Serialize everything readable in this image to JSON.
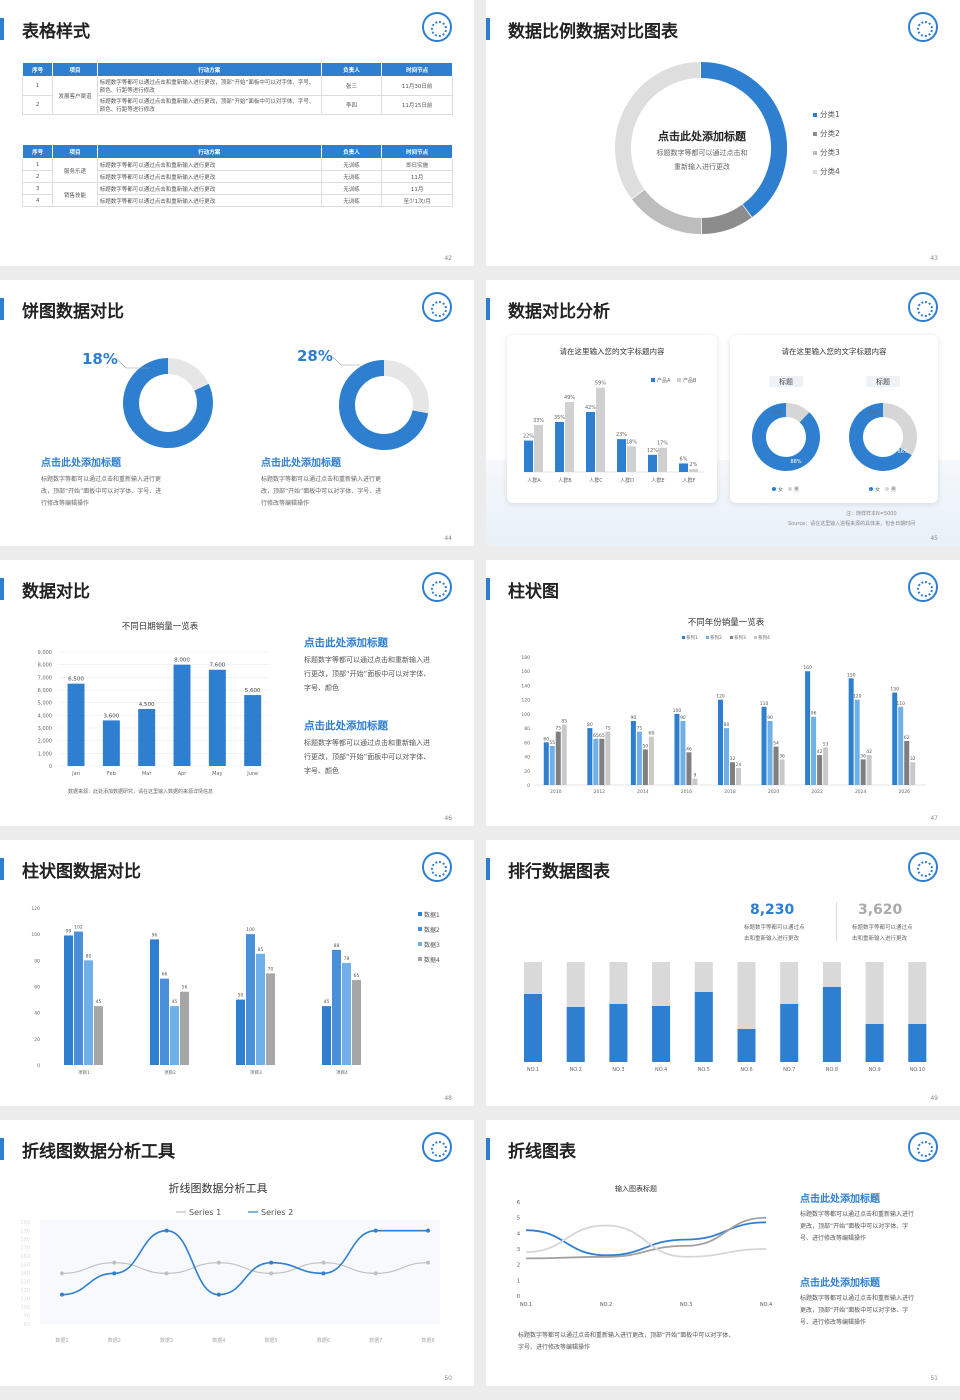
{
  "colors": {
    "blue": "#2f7fd1",
    "light_blue": "#6fb0e8",
    "gray": "#9e9e9e",
    "light_gray": "#d9d9d9"
  },
  "s42": {
    "title": "表格样式",
    "page": "42",
    "t1_headers": [
      "序号",
      "项目",
      "行动方案",
      "负责人",
      "时间节点"
    ],
    "t1_rows": [
      [
        "1",
        "发展客户渠道",
        "标题数字等都可以通过点击和重新输入进行更改，顶部“开始”面板中可以对字体、字号、颜色、行距等进行修改",
        "张三",
        "11月30日前"
      ],
      [
        "2",
        "",
        "标题数字等都可以通过点击和重新输入进行更改，顶部“开始”面板中可以对字体、字号、颜色、行距等进行修改",
        "李四",
        "11月15日前"
      ]
    ],
    "t2_headers": [
      "序号",
      "项目",
      "行动方案",
      "负责人",
      "时间节点"
    ],
    "t2_rows": [
      [
        "1",
        "服务乐递",
        "标题数字等都可以通过点击和重新输入进行更改",
        "无训练",
        "即日实施"
      ],
      [
        "2",
        "",
        "标题数字等都可以通过点击和重新输入进行更改",
        "无训练",
        "11月"
      ],
      [
        "3",
        "销售技能",
        "标题数字等都可以通过点击和重新输入进行更改",
        "无训练",
        "11月"
      ],
      [
        "4",
        "",
        "标题数字等都可以通过点击和重新输入进行更改",
        "无训练",
        "至少1次/月"
      ]
    ]
  },
  "s43": {
    "title": "数据比例数据对比图表",
    "page": "43",
    "center_title": "点击此处添加标题",
    "center_text1": "标题数字等都可以通过点击和",
    "center_text2": "重新输入进行更改",
    "legend": [
      "分类1",
      "分类2",
      "分类3",
      "分类4"
    ]
  },
  "s44": {
    "title": "饼图数据对比",
    "page": "44",
    "p1": "18%",
    "p2": "28%",
    "h1": "点击此处添加标题",
    "h2": "点击此处添加标题",
    "d1": [
      "标题数字等都可以通过点击和重新输入进行更",
      "改，顶部“开始”面板中可以对字体、字号、进",
      "行修改等编辑操作"
    ],
    "d2": [
      "标题数字等都可以通过点击和重新输入进行更",
      "改，顶部“开始”面板中可以对字体、字号、进",
      "行修改等编辑操作"
    ]
  },
  "s45": {
    "title": "数据对比分析",
    "page": "45",
    "card1_title": "请在这里输入您的文字标题内容",
    "card2_title": "请在这里输入您的文字标题内容",
    "legend": [
      "产品A",
      "产品B"
    ],
    "tag": "标题",
    "pie_legend": [
      "女",
      "男"
    ],
    "note": "注：随样样本N=5000",
    "source": "Source：请在这里输入进程来源的具体来，包含日期时间"
  },
  "s46": {
    "title": "数据对比",
    "page": "46",
    "chart_title": "不同日期销量一览表",
    "h1": "点击此处添加标题",
    "h2": "点击此处添加标题",
    "d1": [
      "标题数字等都可以通过点击和重新输入进",
      "行更改，顶部“开始”面板中可以对字体、",
      "字号、颜色"
    ],
    "d2": [
      "标题数字等都可以通过点击和重新输入进",
      "行更改，顶部“开始”面板中可以对字体、",
      "字号、颜色"
    ],
    "source": "数据来源：此处添加数据研究，请在这里输入数据的来源详情信息"
  },
  "s47": {
    "title": "柱状图",
    "page": "47",
    "chart_title": "不同年份销量一览表",
    "legend": [
      "系列1",
      "系列2",
      "系列3",
      "系列4"
    ]
  },
  "s48": {
    "title": "柱状图数据对比",
    "page": "48",
    "legend": [
      "数据1",
      "数据2",
      "数据3",
      "数据4"
    ]
  },
  "s49": {
    "title": "排行数据图表",
    "page": "49",
    "v1": "8,230",
    "v2": "3,620",
    "d1": [
      "标题数字等都可以通过点",
      "击和重新输入进行更改"
    ],
    "d2": [
      "标题数字等都可以通过点",
      "击和重新输入进行更改"
    ]
  },
  "s50": {
    "title": "折线图数据分析工具",
    "page": "50",
    "chart_title": "折线图数据分析工具",
    "legend": [
      "Series 1",
      "Series 2"
    ]
  },
  "s51": {
    "title": "折线图表",
    "page": "51",
    "chart_title": "输入图表标题",
    "h1": "点击此处添加标题",
    "h2": "点击此处添加标题",
    "d1": [
      "标题数字等都可以通过点击和重新输入进行",
      "更改，顶部“开始”面板中可以对字体、字",
      "号、进行修改等编辑操作"
    ],
    "d2": [
      "标题数字等都可以通过点击和重新输入进行",
      "更改，顶部“开始”面板中可以对字体、字",
      "号、进行修改等编辑操作"
    ],
    "bottom": [
      "标题数字等都可以通过点击和重新输入进行更改，顶部“开始”面板中可以对字体、",
      "字号、进行修改等编辑操作"
    ]
  },
  "chart_data": [
    {
      "type": "pie",
      "id": "s43-donut",
      "values": [
        40,
        10,
        15,
        35
      ],
      "categories": [
        "分类1",
        "分类2",
        "分类3",
        "分类4"
      ]
    },
    {
      "type": "pie",
      "id": "s44-donut1",
      "values": [
        18,
        82
      ]
    },
    {
      "type": "pie",
      "id": "s44-donut2",
      "values": [
        28,
        72
      ]
    },
    {
      "type": "bar",
      "id": "s45-bars",
      "categories": [
        "人群A",
        "人群B",
        "人群C",
        "人群D",
        "人群E",
        "人群F"
      ],
      "series": [
        {
          "name": "产品A",
          "values": [
            22,
            35,
            42,
            23,
            12,
            6
          ]
        },
        {
          "name": "产品B",
          "values": [
            33,
            49,
            59,
            18,
            17,
            2
          ]
        }
      ]
    },
    {
      "type": "pie",
      "id": "s45-pie1",
      "values": [
        12,
        88
      ],
      "labels": [
        "12%",
        "88%"
      ]
    },
    {
      "type": "pie",
      "id": "s45-pie2",
      "values": [
        34,
        66
      ],
      "labels": [
        "34%",
        "66%"
      ]
    },
    {
      "type": "bar",
      "id": "s46-bars",
      "categories": [
        "Jan",
        "Feb",
        "Mar",
        "Apr",
        "May",
        "June"
      ],
      "values": [
        6500,
        3600,
        4500,
        8000,
        7600,
        5600
      ],
      "ylim": [
        0,
        9000
      ],
      "yticks": [
        0,
        1000,
        2000,
        3000,
        4000,
        5000,
        6000,
        7000,
        8000,
        9000
      ]
    },
    {
      "type": "bar",
      "id": "s47-bars",
      "categories": [
        "2010",
        "2012",
        "2014",
        "2016",
        "2018",
        "2020",
        "2022",
        "2024",
        "2026"
      ],
      "ylim": [
        0,
        180
      ],
      "yticks": [
        0,
        20,
        40,
        60,
        80,
        100,
        120,
        140,
        160,
        180
      ],
      "series": [
        {
          "name": "系列1",
          "values": [
            60,
            80,
            90,
            100,
            120,
            110,
            160,
            150,
            130
          ]
        },
        {
          "name": "系列2",
          "values": [
            55,
            65,
            75,
            90,
            80,
            90,
            96,
            120,
            110
          ]
        },
        {
          "name": "系列3",
          "values": [
            75,
            65,
            50,
            46,
            32,
            54,
            42,
            36,
            62
          ]
        },
        {
          "name": "系列4",
          "values": [
            85,
            75,
            68,
            9,
            24,
            36,
            53,
            42,
            32
          ]
        }
      ]
    },
    {
      "type": "bar",
      "id": "s48-bars",
      "categories": [
        "项目1",
        "项目2",
        "项目3",
        "项目4"
      ],
      "ylim": [
        0,
        120
      ],
      "yticks": [
        0,
        20,
        40,
        60,
        80,
        100,
        120
      ],
      "series": [
        {
          "name": "数据1",
          "values": [
            99,
            96,
            50,
            45
          ]
        },
        {
          "name": "数据2",
          "values": [
            102,
            66,
            100,
            88
          ]
        },
        {
          "name": "数据3",
          "values": [
            80,
            45,
            85,
            78
          ]
        },
        {
          "name": "数据4",
          "values": [
            45,
            56,
            70,
            65
          ]
        }
      ]
    },
    {
      "type": "bar",
      "id": "s49-stack",
      "categories": [
        "NO.1",
        "NO.2",
        "NO.3",
        "NO.4",
        "NO.5",
        "NO.6",
        "NO.7",
        "NO.8",
        "NO.9",
        "NO.10"
      ],
      "values": [
        68,
        55,
        58,
        56,
        70,
        33,
        58,
        75,
        38,
        38
      ],
      "ylim": [
        0,
        100
      ]
    },
    {
      "type": "line",
      "id": "s50-lines",
      "categories": [
        "数据1",
        "数据2",
        "数据3",
        "数据4",
        "数据5",
        "数据6",
        "数据7",
        "数据8"
      ],
      "series": [
        {
          "name": "Series 1",
          "values": [
            150,
            160,
            150,
            160,
            150,
            160,
            150,
            160
          ]
        },
        {
          "name": "Series 2",
          "values": [
            130,
            150,
            190,
            130,
            160,
            150,
            190,
            190
          ]
        }
      ]
    },
    {
      "type": "line",
      "id": "s51-lines",
      "categories": [
        "NO.1",
        "NO.2",
        "NO.3",
        "NO.4"
      ],
      "ylim": [
        0,
        6
      ],
      "yticks": [
        0,
        1,
        2,
        3,
        4,
        5,
        6
      ],
      "series": [
        {
          "values": [
            4.2,
            2.6,
            3.6,
            4.7
          ]
        },
        {
          "values": [
            2.4,
            2.5,
            3.2,
            5.0
          ]
        },
        {
          "values": [
            2.8,
            4.5,
            2.5,
            3.0
          ]
        }
      ]
    }
  ]
}
